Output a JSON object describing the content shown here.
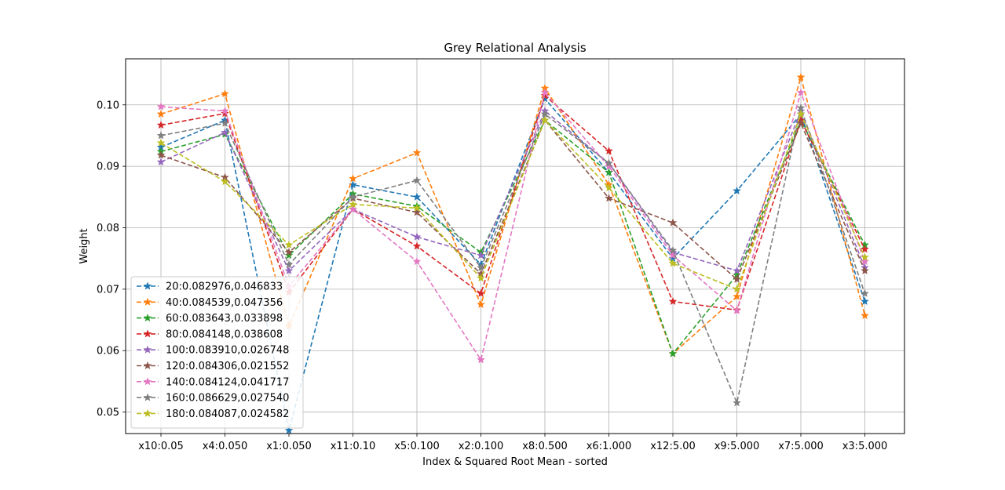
{
  "chart_data": {
    "type": "line",
    "title": "Grey Relational Analysis",
    "xlabel": "Index & Squared Root Mean - sorted",
    "ylabel": "Weight",
    "categories": [
      "x10:0.05",
      "x4:0.050",
      "x1:0.050",
      "x11:0.10",
      "x5:0.100",
      "x2:0.100",
      "x8:0.500",
      "x6:1.000",
      "x12:5.00",
      "x9:5.000",
      "x7:5.000",
      "x3:5.000"
    ],
    "ylim": [
      0.0465,
      0.1075
    ],
    "yticks": [
      0.05,
      0.06,
      0.07,
      0.08,
      0.09,
      0.1
    ],
    "ytick_labels": [
      "0.05",
      "0.06",
      "0.07",
      "0.08",
      "0.09",
      "0.10"
    ],
    "grid": true,
    "legend_position": "lower-left",
    "line_style": "dashed",
    "marker": "star",
    "series": [
      {
        "name": "20:0.082976,0.046833",
        "color": "#1f77b4",
        "values": [
          0.0931,
          0.0975,
          0.047,
          0.087,
          0.085,
          0.074,
          0.101,
          0.089,
          0.075,
          0.086,
          0.0985,
          0.068
        ]
      },
      {
        "name": "40:0.084539,0.047356",
        "color": "#ff7f0e",
        "values": [
          0.0985,
          0.1018,
          0.064,
          0.088,
          0.0922,
          0.0675,
          0.1027,
          0.087,
          0.0595,
          0.0688,
          0.1045,
          0.0657
        ]
      },
      {
        "name": "60:0.083643,0.033898",
        "color": "#2ca02c",
        "values": [
          0.0924,
          0.0952,
          0.0755,
          0.0855,
          0.0835,
          0.076,
          0.0975,
          0.089,
          0.0595,
          0.0723,
          0.0975,
          0.0772
        ]
      },
      {
        "name": "80:0.084148,0.038608",
        "color": "#d62728",
        "values": [
          0.0967,
          0.0986,
          0.0695,
          0.083,
          0.077,
          0.0693,
          0.1015,
          0.0925,
          0.068,
          0.0666,
          0.0975,
          0.0765
        ]
      },
      {
        "name": "100:0.083910,0.026748",
        "color": "#9467bd",
        "values": [
          0.0907,
          0.0955,
          0.073,
          0.083,
          0.0785,
          0.0755,
          0.099,
          0.0905,
          0.076,
          0.073,
          0.099,
          0.0735
        ]
      },
      {
        "name": "120:0.084306,0.021552",
        "color": "#8c564b",
        "values": [
          0.0918,
          0.0882,
          0.076,
          0.0848,
          0.0825,
          0.0725,
          0.0975,
          0.0848,
          0.0808,
          0.0716,
          0.097,
          0.073
        ]
      },
      {
        "name": "140:0.084124,0.041717",
        "color": "#e377c2",
        "values": [
          0.0997,
          0.099,
          0.0705,
          0.083,
          0.0745,
          0.0585,
          0.102,
          0.09,
          0.0755,
          0.0665,
          0.102,
          0.0745
        ]
      },
      {
        "name": "160:0.086629,0.027540",
        "color": "#7f7f7f",
        "values": [
          0.095,
          0.097,
          0.074,
          0.085,
          0.0877,
          0.0735,
          0.0985,
          0.0905,
          0.0763,
          0.0515,
          0.0995,
          0.0693
        ]
      },
      {
        "name": "180:0.084087,0.024582",
        "color": "#bcbd22",
        "values": [
          0.0938,
          0.0875,
          0.0772,
          0.0838,
          0.0832,
          0.0718,
          0.0975,
          0.0865,
          0.0742,
          0.07,
          0.0985,
          0.0752
        ]
      }
    ]
  }
}
